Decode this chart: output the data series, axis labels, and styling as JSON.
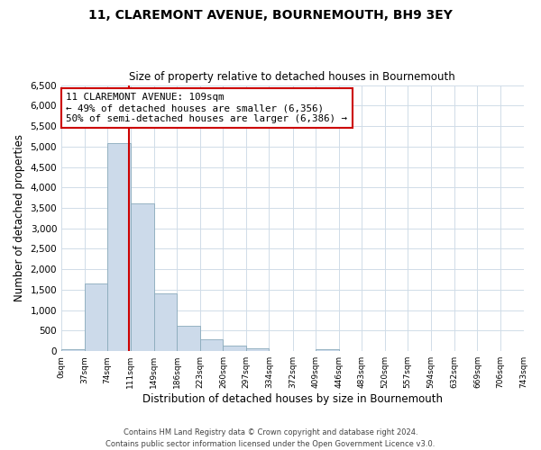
{
  "title": "11, CLAREMONT AVENUE, BOURNEMOUTH, BH9 3EY",
  "subtitle": "Size of property relative to detached houses in Bournemouth",
  "xlabel": "Distribution of detached houses by size in Bournemouth",
  "ylabel": "Number of detached properties",
  "bin_edges": [
    0,
    37,
    74,
    111,
    149,
    186,
    223,
    260,
    297,
    334,
    372,
    409,
    446,
    483,
    520,
    557,
    594,
    632,
    669,
    706,
    743
  ],
  "bin_labels": [
    "0sqm",
    "37sqm",
    "74sqm",
    "111sqm",
    "149sqm",
    "186sqm",
    "223sqm",
    "260sqm",
    "297sqm",
    "334sqm",
    "372sqm",
    "409sqm",
    "446sqm",
    "483sqm",
    "520sqm",
    "557sqm",
    "594sqm",
    "632sqm",
    "669sqm",
    "706sqm",
    "743sqm"
  ],
  "counts": [
    50,
    1650,
    5080,
    3600,
    1420,
    620,
    300,
    140,
    60,
    10,
    10,
    50,
    0,
    0,
    0,
    0,
    0,
    0,
    0,
    0
  ],
  "bar_color": "#ccdaea",
  "bar_edge_color": "#8aaabb",
  "vline_x": 109,
  "vline_color": "#cc0000",
  "annotation_text": "11 CLAREMONT AVENUE: 109sqm\n← 49% of detached houses are smaller (6,356)\n50% of semi-detached houses are larger (6,386) →",
  "annotation_box_color": "#ffffff",
  "annotation_box_edge_color": "#cc0000",
  "ylim": [
    0,
    6500
  ],
  "yticks": [
    0,
    500,
    1000,
    1500,
    2000,
    2500,
    3000,
    3500,
    4000,
    4500,
    5000,
    5500,
    6000,
    6500
  ],
  "footer_line1": "Contains HM Land Registry data © Crown copyright and database right 2024.",
  "footer_line2": "Contains public sector information licensed under the Open Government Licence v3.0.",
  "background_color": "#ffffff",
  "grid_color": "#d0dce8"
}
